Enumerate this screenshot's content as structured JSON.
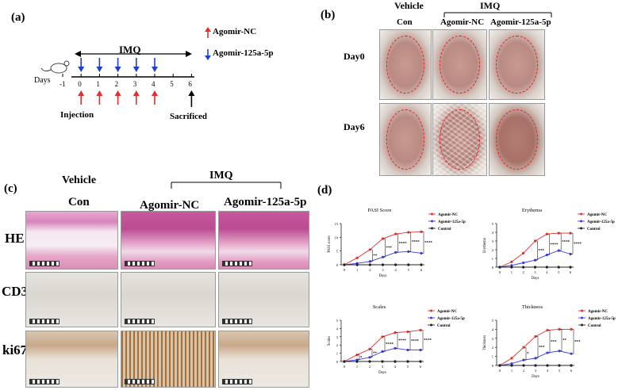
{
  "panel_a": {
    "label": "(a)",
    "imq": "IMQ",
    "legend_nc": "Agomir-NC",
    "legend_125": "Agomir-125a-5p",
    "days_label": "Days",
    "day_ticks": [
      "-1",
      "0",
      "1",
      "2",
      "3",
      "4",
      "5",
      "6"
    ],
    "injection": "Injection",
    "sacrificed": "Sacrificed",
    "colors": {
      "agomir_nc": "#e03030",
      "agomir_125": "#1f3fd0"
    }
  },
  "panel_b": {
    "label": "(b)",
    "vehicle": "Vehicle",
    "imq": "IMQ",
    "cols": [
      "Con",
      "Agomir-NC",
      "Agomir-125a-5p"
    ],
    "rows": [
      "Day0",
      "Day6"
    ]
  },
  "panel_c": {
    "label": "(c)",
    "vehicle": "Vehicle",
    "imq": "IMQ",
    "cols": [
      "Con",
      "Agomir-NC",
      "Agomir-125a-5p"
    ],
    "rows": [
      "HE",
      "CD3",
      "ki67"
    ]
  },
  "panel_d": {
    "label": "(d)",
    "x_label": "Days",
    "legend": [
      "Agomir-NC",
      "Agomir-125a-5p",
      "Control"
    ],
    "colors": {
      "Agomir-NC": "#e03030",
      "Agomir-125a-5p": "#3a3ae0",
      "Control": "#222222"
    }
  },
  "chart_data": [
    {
      "type": "line",
      "title": "PASI Score",
      "xlabel": "Days",
      "ylabel": "PASI score",
      "x": [
        0,
        1,
        2,
        3,
        4,
        5,
        6
      ],
      "ylim": [
        0,
        15
      ],
      "yticks": [
        0,
        5,
        10,
        15
      ],
      "series": [
        {
          "name": "Agomir-NC",
          "values": [
            0,
            2.5,
            5.5,
            9.5,
            11.2,
            11.8,
            12
          ]
        },
        {
          "name": "Agomir-125a-5p",
          "values": [
            0,
            0.5,
            1.2,
            2.8,
            4.5,
            4.8,
            4.2
          ]
        },
        {
          "name": "Control",
          "values": [
            0,
            0,
            0,
            0,
            0,
            0,
            0
          ]
        }
      ],
      "significance": [
        "",
        "",
        "**",
        "***",
        "****",
        "****",
        "****"
      ]
    },
    {
      "type": "line",
      "title": "Erythema",
      "xlabel": "Days",
      "ylabel": "Erythema",
      "x": [
        0,
        1,
        2,
        3,
        4,
        5,
        6
      ],
      "ylim": [
        0,
        5
      ],
      "yticks": [
        0,
        1,
        2,
        3,
        4,
        5
      ],
      "series": [
        {
          "name": "Agomir-NC",
          "values": [
            0,
            0.6,
            1.6,
            3.0,
            3.8,
            3.9,
            3.9
          ]
        },
        {
          "name": "Agomir-125a-5p",
          "values": [
            0,
            0.2,
            0.5,
            0.8,
            1.4,
            1.9,
            1.5
          ]
        },
        {
          "name": "Control",
          "values": [
            0,
            0,
            0,
            0,
            0,
            0,
            0
          ]
        }
      ],
      "significance": [
        "",
        "",
        "",
        "***",
        "****",
        "****",
        "****"
      ]
    },
    {
      "type": "line",
      "title": "Scales",
      "xlabel": "Days",
      "ylabel": "Scales",
      "x": [
        0,
        1,
        2,
        3,
        4,
        5,
        6
      ],
      "ylim": [
        0,
        5
      ],
      "yticks": [
        0,
        1,
        2,
        3,
        4,
        5
      ],
      "series": [
        {
          "name": "Agomir-NC",
          "values": [
            0,
            0.8,
            1.5,
            3.0,
            3.5,
            3.6,
            3.8
          ]
        },
        {
          "name": "Agomir-125a-5p",
          "values": [
            0,
            0.2,
            0.5,
            1.2,
            1.6,
            1.4,
            1.4
          ]
        },
        {
          "name": "Control",
          "values": [
            0,
            0,
            0,
            0,
            0,
            0,
            0
          ]
        }
      ],
      "significance": [
        "",
        "*",
        "**",
        "****",
        "****",
        "****",
        "****"
      ]
    },
    {
      "type": "line",
      "title": "Thickness",
      "xlabel": "Days",
      "ylabel": "Thickness",
      "x": [
        0,
        1,
        2,
        3,
        4,
        5,
        6
      ],
      "ylim": [
        0,
        5
      ],
      "yticks": [
        0,
        1,
        2,
        3,
        4,
        5
      ],
      "series": [
        {
          "name": "Agomir-NC",
          "values": [
            0,
            0.8,
            2.0,
            3.2,
            3.9,
            4.0,
            4.0
          ]
        },
        {
          "name": "Agomir-125a-5p",
          "values": [
            0,
            0.2,
            0.6,
            0.8,
            1.4,
            1.6,
            1.3
          ]
        },
        {
          "name": "Control",
          "values": [
            0,
            0,
            0,
            0,
            0,
            0,
            0
          ]
        }
      ],
      "significance": [
        "",
        "",
        "*",
        "***",
        "***",
        "**",
        "***"
      ]
    }
  ]
}
